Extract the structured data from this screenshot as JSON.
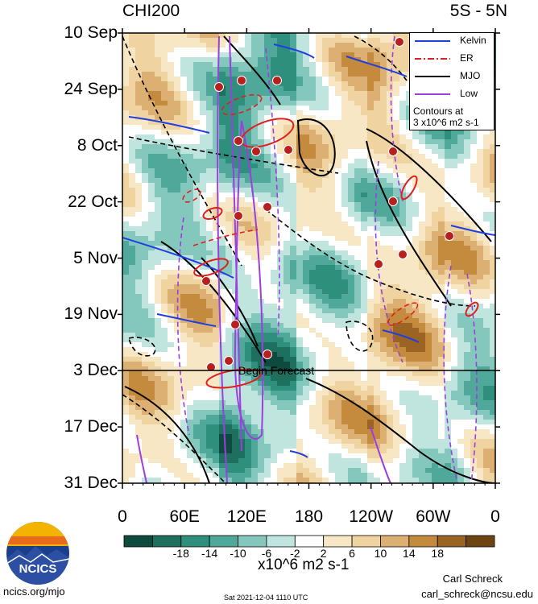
{
  "header": {
    "title": "CHI200",
    "region": "5S - 5N"
  },
  "chart_data": {
    "type": "heatmap",
    "title": "CHI200",
    "subtitle": "5S - 5N",
    "y_ticks": [
      "10 Sep",
      "24 Sep",
      "8 Oct",
      "22 Oct",
      "5 Nov",
      "19 Nov",
      "3 Dec",
      "17 Dec",
      "31 Dec"
    ],
    "x_ticks": [
      "0",
      "60E",
      "120E",
      "180",
      "120W",
      "60W",
      "0"
    ],
    "xlim": [
      0,
      360
    ],
    "forecast_label": "Begin Forecast",
    "forecast_date": "3 Dec",
    "legend": {
      "position": "top-right",
      "entries": [
        {
          "name": "Kelvin",
          "color": "#1f3fe0",
          "style": "solid"
        },
        {
          "name": "ER",
          "color": "#e01f1f",
          "style": "dash-dot"
        },
        {
          "name": "MJO",
          "color": "#000000",
          "style": "solid"
        },
        {
          "name": "Low",
          "color": "#9b3fe0",
          "style": "solid"
        }
      ],
      "note_line1": "Contours at",
      "note_line2": "3 x10^6 m2 s-1"
    },
    "colorbar": {
      "labels": [
        "-18",
        "-14",
        "-10",
        "-6",
        "-2",
        "2",
        "6",
        "10",
        "14",
        "18"
      ],
      "colors": [
        "#0e4a3e",
        "#1f6f5e",
        "#2e8f7d",
        "#4fa89a",
        "#84c7bc",
        "#bfe5de",
        "#ffffff",
        "#f7e7c4",
        "#efd3a0",
        "#dcb072",
        "#c48a3e",
        "#9c6422",
        "#6e4510"
      ],
      "units": "x10^6 m2 s-1"
    }
  },
  "footer": {
    "logo_text": "NCICS",
    "url": "ncics.org/mjo",
    "timestamp": "Sat 2021-12-04 1110 UTC",
    "author": "Carl Schreck",
    "email": "carl_schreck@ncsu.edu"
  }
}
